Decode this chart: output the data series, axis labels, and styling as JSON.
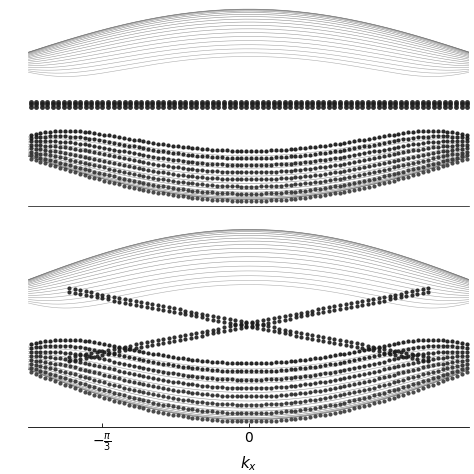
{
  "background_color": "#ffffff",
  "bulk_line_color": "#aaaaaa",
  "dark_dot_color": "#1a1a1a",
  "mid_dot_color": "#555555",
  "t1": 1.0,
  "phi": 1.5707963267948966,
  "kx_min": -1.5707963267948966,
  "kx_max": 1.5707963267948966,
  "xlabel": "$k_x$",
  "xtick_positions": [
    -1.0471975511965976,
    0.0
  ],
  "xtick_labels": [
    "$-\\frac{\\pi}{3}$",
    "$0$"
  ],
  "panel1_t2": 0.3,
  "panel1_m": 0.5,
  "panel2_t2": 0.577,
  "panel2_m": 0.0,
  "num_kx": 400,
  "num_edge_dots": 80,
  "num_bulk_dot_cols": 90,
  "figsize": [
    4.74,
    4.74
  ],
  "dpi": 100
}
